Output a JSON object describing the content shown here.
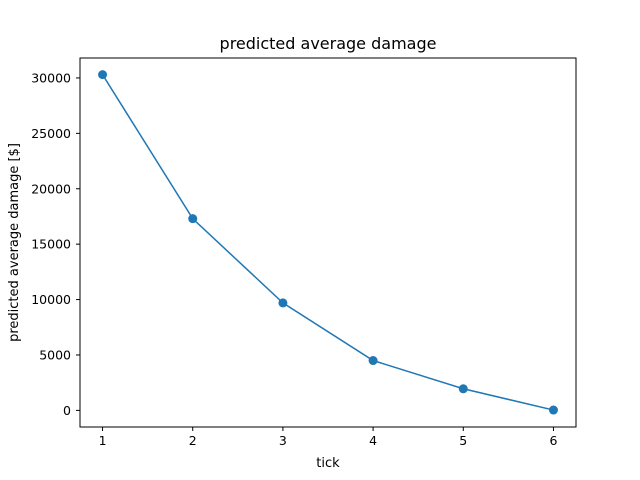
{
  "chart_data": {
    "type": "line",
    "title": "predicted average damage",
    "xlabel": "tick",
    "ylabel": "predicted average damage [$]",
    "x": [
      1,
      2,
      3,
      4,
      5,
      6
    ],
    "series": [
      {
        "values": [
          30300,
          17300,
          9700,
          4500,
          1950,
          30
        ]
      }
    ],
    "xticks": [
      1,
      2,
      3,
      4,
      5,
      6
    ],
    "yticks": [
      0,
      5000,
      10000,
      15000,
      20000,
      25000,
      30000
    ],
    "xlim": [
      0.75,
      6.25
    ],
    "ylim": [
      -1500,
      31800
    ],
    "grid": false,
    "marker": "circle",
    "color": "#1f77b4"
  }
}
